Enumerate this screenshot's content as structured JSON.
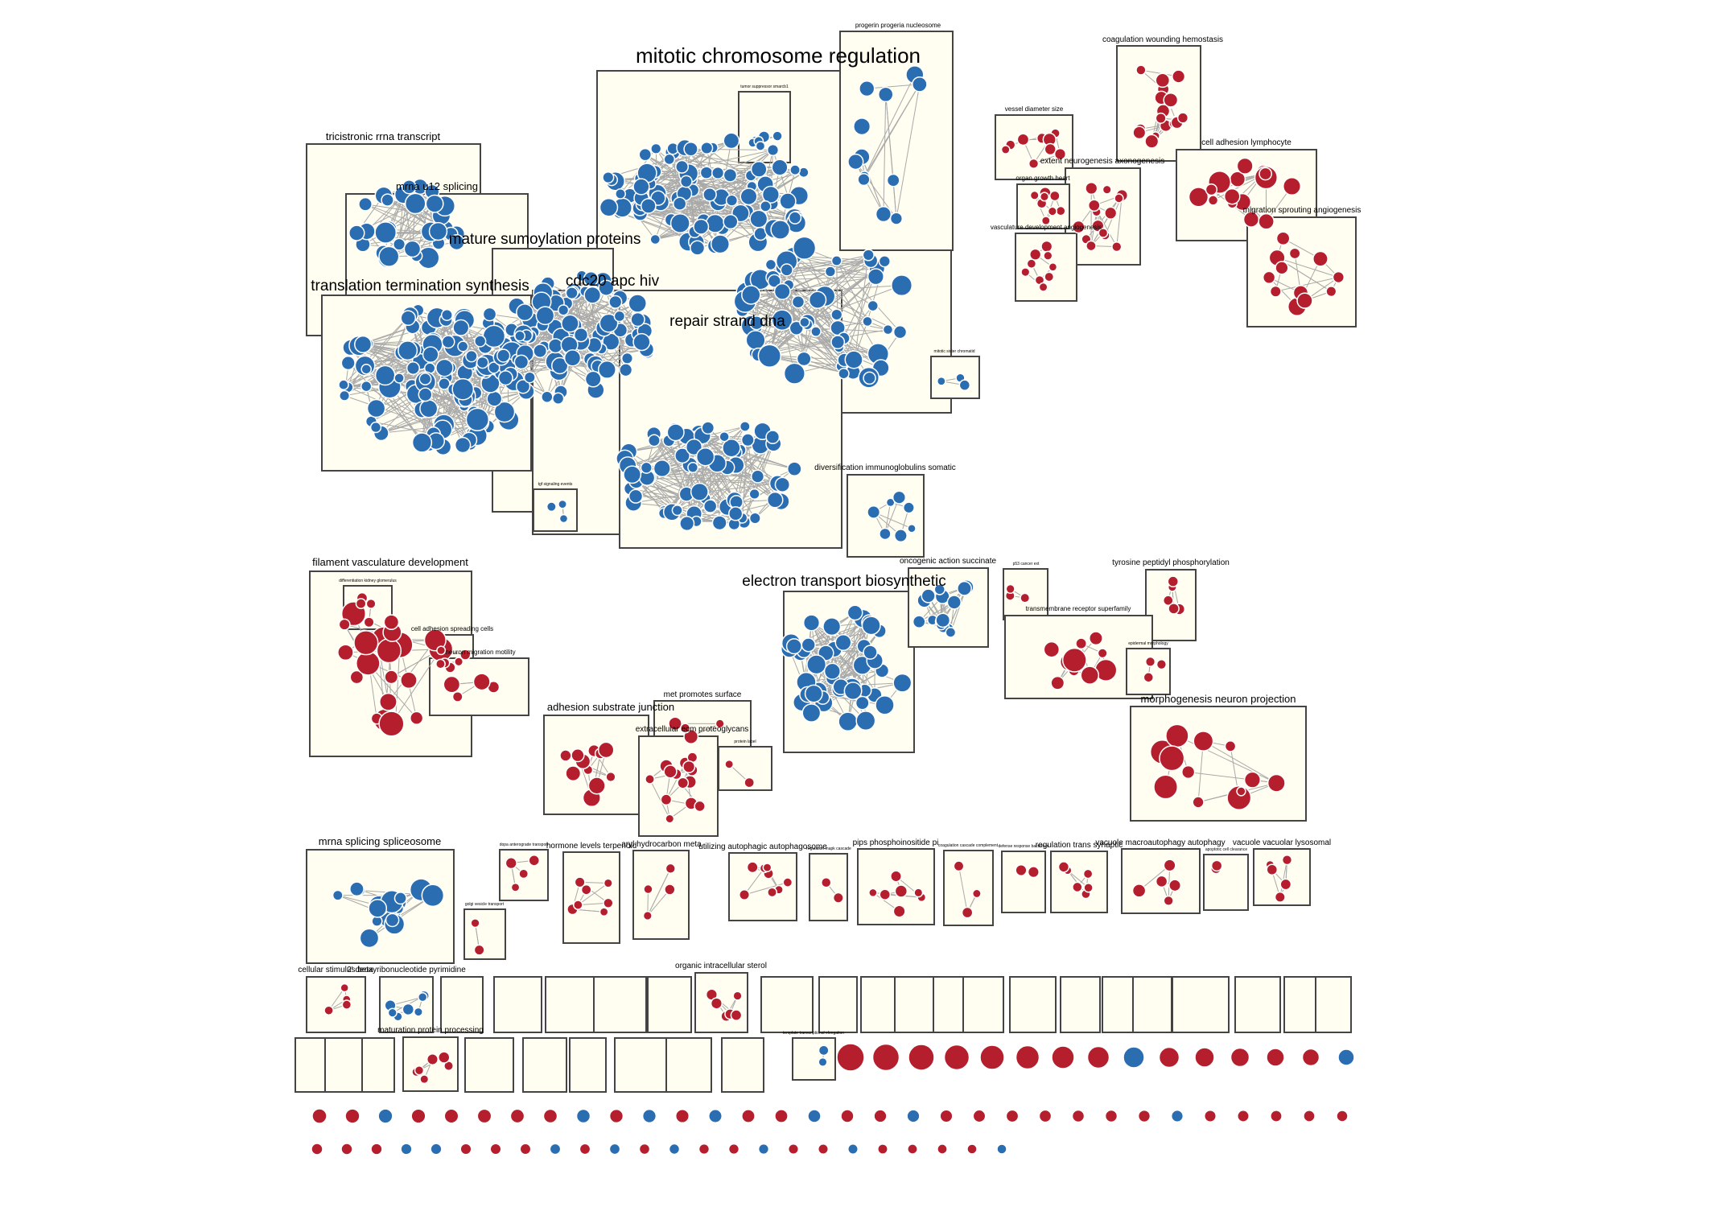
{
  "map": {
    "colors": {
      "up": "#b51f2d",
      "down": "#2a6db1",
      "box": "#fffef0",
      "edge": "#a9a9a9"
    },
    "clusters": [
      {
        "label": "mitotic chromosome regulation",
        "size": "xl",
        "color": "down"
      },
      {
        "label": "tricistronic rrna transcript",
        "size": "m",
        "color": "down"
      },
      {
        "label": "mrna u12 splicing",
        "size": "m",
        "color": "down"
      },
      {
        "label": "mature sumoylation proteins",
        "size": "l",
        "color": "down"
      },
      {
        "label": "translation termination synthesis",
        "size": "l",
        "color": "down"
      },
      {
        "label": "cdc20 apc hiv",
        "size": "l",
        "color": "down"
      },
      {
        "label": "repair strand dna",
        "size": "l",
        "color": "down"
      },
      {
        "label": "progerin progeria nucleosome",
        "size": "xs",
        "color": "down"
      },
      {
        "label": "tumor suppressor smarcb1",
        "size": "xxs",
        "color": "down"
      },
      {
        "label": "mitotic sister chromatid",
        "size": "xxs",
        "color": "down"
      },
      {
        "label": "diversification immunoglobulins somatic",
        "size": "s",
        "color": "down"
      },
      {
        "label": "tgf signaling events",
        "size": "xxs",
        "color": "down"
      },
      {
        "label": "coagulation wounding hemostasis",
        "size": "s",
        "color": "up"
      },
      {
        "label": "vessel diameter size",
        "size": "xs",
        "color": "up"
      },
      {
        "label": "extent neurogenesis axonogenesis",
        "size": "s",
        "color": "up"
      },
      {
        "label": "organ growth heart",
        "size": "xs",
        "color": "up"
      },
      {
        "label": "vasculature development angiogenesis",
        "size": "xs",
        "color": "up"
      },
      {
        "label": "cell adhesion lymphocyte",
        "size": "s",
        "color": "up"
      },
      {
        "label": "migration sprouting angiogenesis",
        "size": "s",
        "color": "up"
      },
      {
        "label": "filament vasculature development",
        "size": "m",
        "color": "up"
      },
      {
        "label": "differentiation kidney glomerulus",
        "size": "xxs",
        "color": "up"
      },
      {
        "label": "cell adhesion spreading cells",
        "size": "xs",
        "color": "up"
      },
      {
        "label": "neuron migration motility",
        "size": "xs",
        "color": "up"
      },
      {
        "label": "electron transport biosynthetic",
        "size": "l",
        "color": "down"
      },
      {
        "label": "oncogenic action succinate",
        "size": "s",
        "color": "down"
      },
      {
        "label": "p53 cancer ext",
        "size": "xxs",
        "color": "up"
      },
      {
        "label": "tyrosine peptidyl phosphorylation",
        "size": "s",
        "color": "up"
      },
      {
        "label": "transmembrane receptor superfamily",
        "size": "xs",
        "color": "up"
      },
      {
        "label": "epidermal morphology",
        "size": "xxs",
        "color": "up"
      },
      {
        "label": "morphogenesis neuron projection",
        "size": "m",
        "color": "up"
      },
      {
        "label": "met promotes surface",
        "size": "s",
        "color": "up"
      },
      {
        "label": "adhesion substrate junction",
        "size": "m",
        "color": "up"
      },
      {
        "label": "extracellular ecm proteoglycans",
        "size": "s",
        "color": "up"
      },
      {
        "label": "protein label",
        "size": "xxs",
        "color": "up"
      },
      {
        "label": "mrna splicing spliceosome",
        "size": "m",
        "color": "down"
      },
      {
        "label": "dopa anterograde transport",
        "size": "xxs",
        "color": "up"
      },
      {
        "label": "golgi vesicle transport",
        "size": "xxs",
        "color": "up"
      },
      {
        "label": "hormone levels terpenoid",
        "size": "s",
        "color": "up"
      },
      {
        "label": "aryl hydrocarbon meta",
        "size": "s",
        "color": "up"
      },
      {
        "label": "utilizing autophagic autophagosome",
        "size": "s",
        "color": "up"
      },
      {
        "label": "regulation mapk cascade",
        "size": "xxs",
        "color": "up"
      },
      {
        "label": "pips phosphoinositide pi",
        "size": "s",
        "color": "up"
      },
      {
        "label": "coagulation cascade complement",
        "size": "xxs",
        "color": "up"
      },
      {
        "label": "defense response bacterium",
        "size": "xxs",
        "color": "up"
      },
      {
        "label": "regulation trans synaptic",
        "size": "s",
        "color": "up"
      },
      {
        "label": "vacuole macroautophagy autophagy",
        "size": "s",
        "color": "up"
      },
      {
        "label": "apoptotic cell clearance",
        "size": "xxs",
        "color": "up"
      },
      {
        "label": "vacuole vacuolar lysosomal",
        "size": "s",
        "color": "up"
      },
      {
        "label": "cellular stimulus beta",
        "size": "s",
        "color": "up"
      },
      {
        "label": "2' deoxyribonucleotide pyrimidine",
        "size": "s",
        "color": "down"
      },
      {
        "label": "organic intracellular sterol",
        "size": "s",
        "color": "up"
      },
      {
        "label": "maturation protein processing",
        "size": "s",
        "color": "up"
      },
      {
        "label": "template transcriptional elongation",
        "size": "xxs",
        "color": "down"
      }
    ],
    "singleton_rows": [
      {
        "colors": [
          "up",
          "up",
          "up",
          "up",
          "up",
          "up",
          "up",
          "up",
          "down",
          "up",
          "up",
          "up",
          "up",
          "up",
          "down"
        ]
      },
      {
        "colors": [
          "up",
          "up",
          "down",
          "up",
          "up",
          "up",
          "up",
          "up",
          "down",
          "up",
          "down",
          "up",
          "down",
          "up",
          "up",
          "down",
          "up",
          "up",
          "down",
          "up",
          "up",
          "up",
          "up",
          "up",
          "up",
          "up",
          "down",
          "up",
          "up",
          "up",
          "up",
          "up"
        ]
      },
      {
        "colors": [
          "up",
          "up",
          "up",
          "down",
          "down",
          "up",
          "up",
          "up",
          "down",
          "up",
          "down",
          "up",
          "down",
          "up",
          "up",
          "down",
          "up",
          "up",
          "down",
          "up",
          "up",
          "up",
          "up",
          "down"
        ]
      }
    ]
  }
}
